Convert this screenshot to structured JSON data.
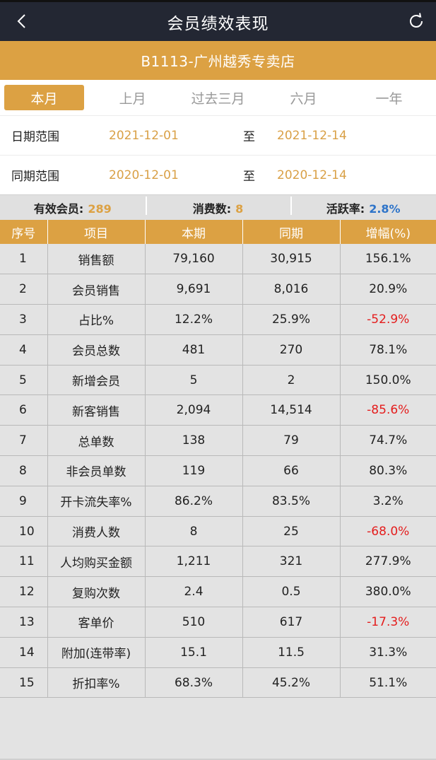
{
  "header": {
    "title": "会员绩效表现"
  },
  "store": {
    "name": "B1113-广州越秀专卖店"
  },
  "tabs": [
    {
      "label": "本月",
      "active": true
    },
    {
      "label": "上月",
      "active": false
    },
    {
      "label": "过去三月",
      "active": false
    },
    {
      "label": "六月",
      "active": false
    },
    {
      "label": "一年",
      "active": false
    }
  ],
  "date_range": {
    "label": "日期范围",
    "start": "2021-12-01",
    "to": "至",
    "end": "2021-12-14"
  },
  "compare_range": {
    "label": "同期范围",
    "start": "2020-12-01",
    "to": "至",
    "end": "2020-12-14"
  },
  "stats": [
    {
      "label": "有效会员:",
      "value": "289"
    },
    {
      "label": "消费数:",
      "value": "8"
    },
    {
      "label": "活跃率:",
      "value": "2.8%"
    }
  ],
  "table": {
    "headers": [
      "序号",
      "项目",
      "本期",
      "同期",
      "增幅(%)"
    ],
    "rows": [
      [
        "1",
        "销售额",
        "79,160",
        "30,915",
        "156.1%"
      ],
      [
        "2",
        "会员销售",
        "9,691",
        "8,016",
        "20.9%"
      ],
      [
        "3",
        "占比%",
        "12.2%",
        "25.9%",
        "-52.9%"
      ],
      [
        "4",
        "会员总数",
        "481",
        "270",
        "78.1%"
      ],
      [
        "5",
        "新增会员",
        "5",
        "2",
        "150.0%"
      ],
      [
        "6",
        "新客销售",
        "2,094",
        "14,514",
        "-85.6%"
      ],
      [
        "7",
        "总单数",
        "138",
        "79",
        "74.7%"
      ],
      [
        "8",
        "非会员单数",
        "119",
        "66",
        "80.3%"
      ],
      [
        "9",
        "开卡流失率%",
        "86.2%",
        "83.5%",
        "3.2%"
      ],
      [
        "10",
        "消费人数",
        "8",
        "25",
        "-68.0%"
      ],
      [
        "11",
        "人均购买金额",
        "1,211",
        "321",
        "277.9%"
      ],
      [
        "12",
        "复购次数",
        "2.4",
        "0.5",
        "380.0%"
      ],
      [
        "13",
        "客单价",
        "510",
        "617",
        "-17.3%"
      ],
      [
        "14",
        "附加(连带率)",
        "15.1",
        "11.5",
        "31.3%"
      ],
      [
        "15",
        "折扣率%",
        "68.3%",
        "45.2%",
        "51.1%"
      ]
    ]
  },
  "colors": {
    "accent": "#dca143",
    "topbar": "#232733",
    "negative": "#e41d1d",
    "rate_value": "#2e74c9"
  },
  "icons": {
    "back": "chevron-left-icon",
    "refresh": "refresh-icon"
  }
}
